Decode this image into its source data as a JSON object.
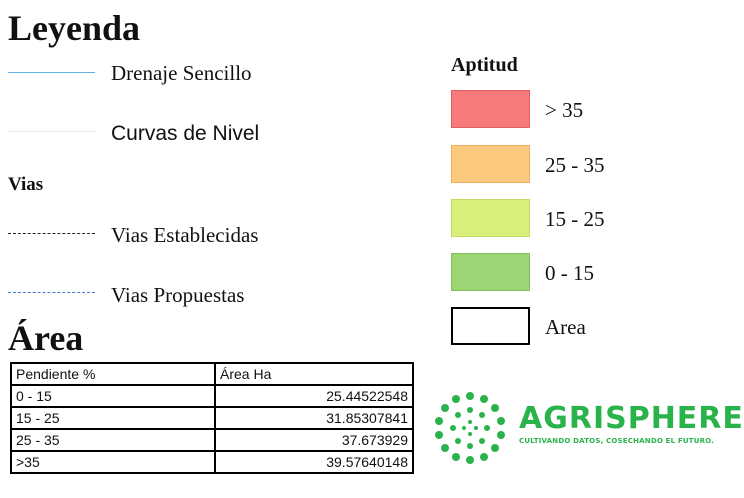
{
  "legend": {
    "title": "Leyenda",
    "drainage_label": "Drenaje Sencillo",
    "contour_label": "Curvas de Nivel",
    "roads_heading": "Vias",
    "roads_established_label": "Vias Establecidas",
    "roads_proposed_label": "Vias Propuestas",
    "colors": {
      "drainage": "#5fb3f0",
      "contour": "#e6e6e6",
      "road_established": "#222222",
      "road_proposed": "#3b7fd6"
    }
  },
  "aptitud": {
    "title": "Aptitud",
    "items": [
      {
        "label": "> 35",
        "color": "#f77b7b"
      },
      {
        "label": "25 - 35",
        "color": "#fdc97f"
      },
      {
        "label": "15 - 25",
        "color": "#d8ef7a"
      },
      {
        "label": "0 - 15",
        "color": "#9bd574"
      },
      {
        "label": "Area",
        "color": "#ffffff"
      }
    ]
  },
  "area": {
    "title": "Área",
    "columns": [
      "Pendiente %",
      "Área Ha"
    ],
    "rows": [
      [
        "0 - 15",
        "25.44522548"
      ],
      [
        "15 - 25",
        "31.85307841"
      ],
      [
        "25 - 35",
        "37.673929"
      ],
      [
        ">35",
        "39.57640148"
      ]
    ]
  },
  "brand": {
    "name": "AGRISPHERE",
    "tagline": "CULTIVANDO DATOS, COSECHANDO EL FUTURO.",
    "color": "#29b34a"
  }
}
